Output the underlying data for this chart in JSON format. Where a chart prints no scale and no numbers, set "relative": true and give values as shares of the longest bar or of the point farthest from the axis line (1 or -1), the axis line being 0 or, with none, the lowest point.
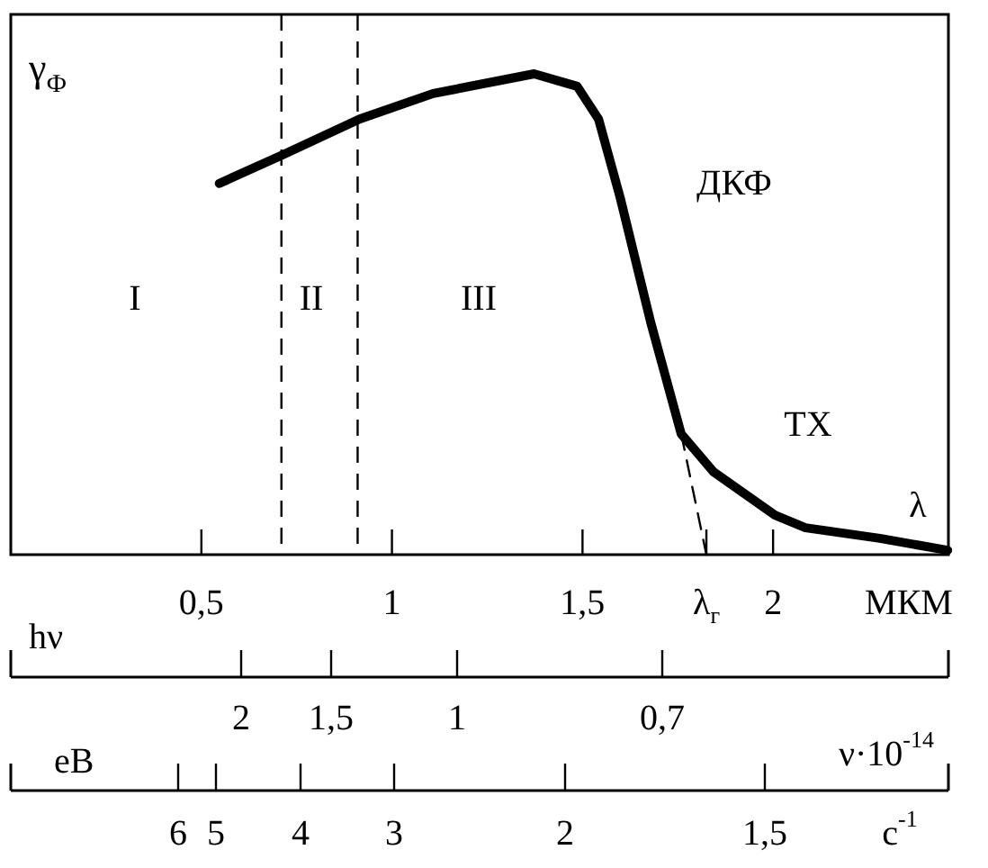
{
  "chart_data": [
    {
      "type": "line",
      "relative": true,
      "ylabel": "γ$_{Ф}$",
      "xlabel": "МКМ",
      "xlim": [
        0,
        2.46
      ],
      "xticks": [
        {
          "value": 0.5,
          "label": "0,5"
        },
        1,
        {
          "value": 1.5,
          "label": "1,5"
        },
        2,
        {
          "value": 1.825,
          "label": "λ$_{г}$"
        }
      ],
      "marker": "none",
      "series": [
        {
          "color": "#000000",
          "line_style": "solid",
          "x": [
            0.547,
            0.712,
            0.915,
            1.108,
            1.373,
            1.486,
            1.542,
            1.599,
            1.679,
            1.759,
            1.844,
            2.005,
            2.085,
            2.28,
            2.458
          ],
          "values": [
            0.772,
            0.831,
            0.906,
            0.959,
            1.0,
            0.974,
            0.906,
            0.742,
            0.483,
            0.251,
            0.172,
            0.082,
            0.056,
            0.034,
            0.009
          ]
        },
        {
          "color": "#000000",
          "line_style": "dashed",
          "x": [
            1.759,
            1.825
          ],
          "values": [
            0.251,
            0
          ]
        }
      ],
      "ref_lines": [
        {
          "axis": "x",
          "value": 0.71,
          "line_style": "dashed",
          "color": "#000000"
        },
        {
          "axis": "x",
          "value": 0.91,
          "line_style": "dashed",
          "color": "#000000"
        }
      ],
      "annotations": [
        "I",
        "II",
        "III",
        "ДКФ",
        "ТХ",
        "λ"
      ]
    },
    {
      "type": "other",
      "xlabel": "hν",
      "annotations": [
        "2",
        "1,5",
        "1",
        "0,7",
        "eB"
      ]
    },
    {
      "type": "other",
      "xlabel": "ν·10$^{-14}$",
      "annotations": [
        "6",
        "5",
        "4",
        "3",
        "2",
        "1,5",
        "c$^{-1}$"
      ]
    }
  ]
}
